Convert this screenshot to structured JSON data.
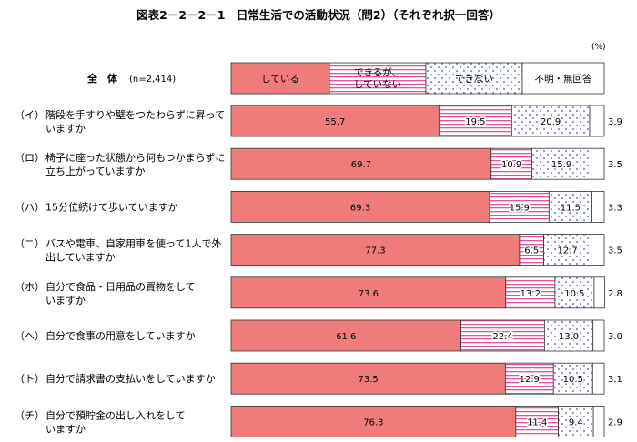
{
  "title": "図表2－2－2－1　日常生活での活動状況（問2）（それぞれ択一回答）",
  "unit": "(%)",
  "chart_data": {
    "type": "bar",
    "orientation": "horizontal",
    "stacked": true,
    "percent": true,
    "legend_row": {
      "prefix": "（",
      "label": "全　体",
      "n": "(n=2,414)"
    },
    "series": [
      {
        "name": "している",
        "color": "#f07b7b",
        "pattern": "solid"
      },
      {
        "name": "できるが、していない",
        "color": "#e0559f",
        "pattern": "horizontal-stripes"
      },
      {
        "name": "できない",
        "color": "#3a5a9a",
        "pattern": "dots"
      },
      {
        "name": "不明・無回答",
        "color": "#ffffff",
        "pattern": "none"
      }
    ],
    "categories": [
      {
        "prefix": "（イ）",
        "line1": "階段を手すりや壁をつたわらずに昇って",
        "line2": "いますか",
        "values": [
          55.7,
          19.5,
          20.9,
          3.9
        ]
      },
      {
        "prefix": "（ロ）",
        "line1": "椅子に座った状態から何もつかまらずに",
        "line2": "立ち上がっていますか",
        "values": [
          69.7,
          10.9,
          15.9,
          3.5
        ]
      },
      {
        "prefix": "（ハ）",
        "line1": "15分位続けて歩いていますか",
        "line2": "",
        "values": [
          69.3,
          15.9,
          11.5,
          3.3
        ]
      },
      {
        "prefix": "（ニ）",
        "line1": "バスや電車、自家用車を使って1人で外",
        "line2": "出していますか",
        "values": [
          77.3,
          6.5,
          12.7,
          3.5
        ]
      },
      {
        "prefix": "（ホ）",
        "line1": "自分で食品・日用品の買物をして",
        "line2": "いますか",
        "values": [
          73.6,
          13.2,
          10.5,
          2.8
        ]
      },
      {
        "prefix": "（ヘ）",
        "line1": "自分で食事の用意をしていますか",
        "line2": "",
        "values": [
          61.6,
          22.4,
          13.0,
          3.0
        ]
      },
      {
        "prefix": "（ト）",
        "line1": "自分で請求書の支払いをしていますか",
        "line2": "",
        "values": [
          73.5,
          12.9,
          10.5,
          3.1
        ]
      },
      {
        "prefix": "（チ）",
        "line1": "自分で預貯金の出し入れをして",
        "line2": "いますか",
        "values": [
          76.3,
          11.4,
          9.4,
          2.9
        ]
      }
    ],
    "xlim": [
      0,
      100
    ]
  }
}
